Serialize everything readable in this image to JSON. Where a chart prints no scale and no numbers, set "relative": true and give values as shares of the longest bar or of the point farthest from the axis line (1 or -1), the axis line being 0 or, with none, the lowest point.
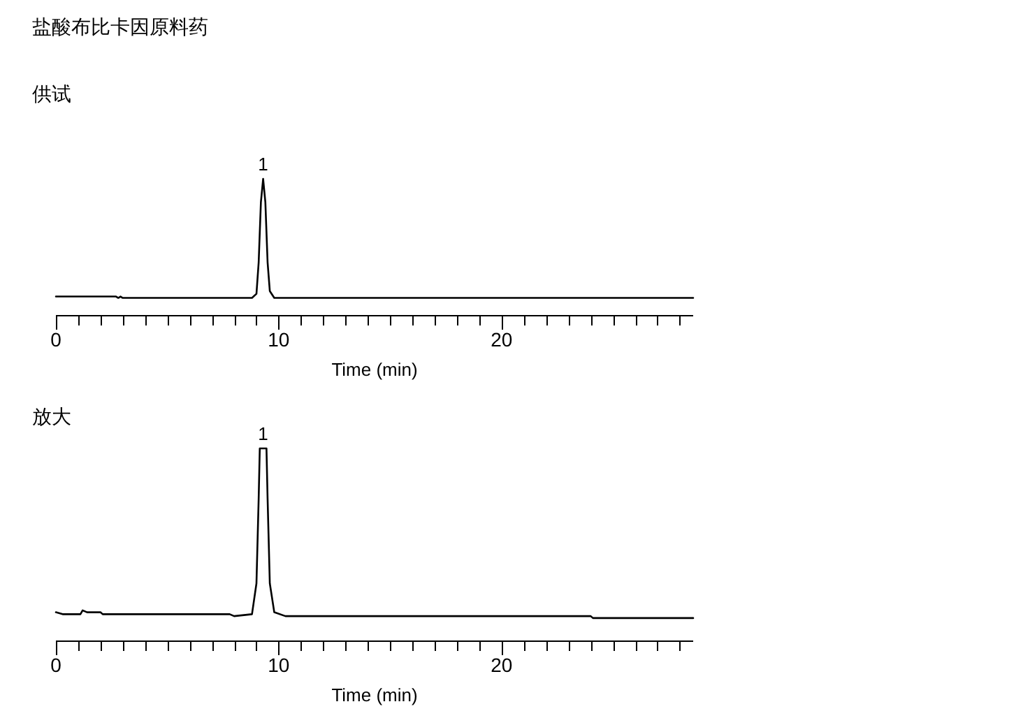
{
  "chart_data": [
    {
      "type": "line",
      "title": "盐酸布比卡因原料药",
      "subtitle": "供试",
      "xlabel": "Time (min)",
      "relative": true,
      "xlim": [
        0,
        28.6
      ],
      "xticks": [
        0,
        {
          "value": 1,
          "label": null
        },
        {
          "value": 2,
          "label": null
        },
        {
          "value": 3,
          "label": null
        },
        {
          "value": 4,
          "label": null
        },
        {
          "value": 5,
          "label": null
        },
        {
          "value": 6,
          "label": null
        },
        {
          "value": 7,
          "label": null
        },
        {
          "value": 8,
          "label": null
        },
        {
          "value": 9,
          "label": null
        },
        10,
        {
          "value": 11,
          "label": null
        },
        {
          "value": 12,
          "label": null
        },
        {
          "value": 13,
          "label": null
        },
        {
          "value": 14,
          "label": null
        },
        {
          "value": 15,
          "label": null
        },
        {
          "value": 16,
          "label": null
        },
        {
          "value": 17,
          "label": null
        },
        {
          "value": 18,
          "label": null
        },
        {
          "value": 19,
          "label": null
        },
        20,
        {
          "value": 21,
          "label": null
        },
        {
          "value": 22,
          "label": null
        },
        {
          "value": 23,
          "label": null
        },
        {
          "value": 24,
          "label": null
        },
        {
          "value": 25,
          "label": null
        },
        {
          "value": 26,
          "label": null
        },
        {
          "value": 27,
          "label": null
        },
        {
          "value": 28,
          "label": null
        }
      ],
      "tick_labels": "x",
      "series": [
        {
          "color": "#000000",
          "x": [
            0,
            2.7,
            2.8,
            2.9,
            3.0,
            8.8,
            9.0,
            9.1,
            9.2,
            9.3,
            9.4,
            9.5,
            9.6,
            9.8,
            15,
            28.6
          ],
          "values": [
            0.14,
            0.14,
            0.13,
            0.14,
            0.13,
            0.13,
            0.16,
            0.39,
            0.83,
            1,
            0.83,
            0.39,
            0.18,
            0.13,
            0.13,
            0.13
          ]
        }
      ],
      "annotations": [
        {
          "text": "1",
          "x": 9.3,
          "y": 1
        }
      ]
    },
    {
      "type": "line",
      "title": "放大",
      "xlabel": "Time (min)",
      "relative": true,
      "xlim": [
        0,
        28.6
      ],
      "xticks": [
        0,
        {
          "value": 1,
          "label": null
        },
        {
          "value": 2,
          "label": null
        },
        {
          "value": 3,
          "label": null
        },
        {
          "value": 4,
          "label": null
        },
        {
          "value": 5,
          "label": null
        },
        {
          "value": 6,
          "label": null
        },
        {
          "value": 7,
          "label": null
        },
        {
          "value": 8,
          "label": null
        },
        {
          "value": 9,
          "label": null
        },
        10,
        {
          "value": 11,
          "label": null
        },
        {
          "value": 12,
          "label": null
        },
        {
          "value": 13,
          "label": null
        },
        {
          "value": 14,
          "label": null
        },
        {
          "value": 15,
          "label": null
        },
        {
          "value": 16,
          "label": null
        },
        {
          "value": 17,
          "label": null
        },
        {
          "value": 18,
          "label": null
        },
        {
          "value": 19,
          "label": null
        },
        20,
        {
          "value": 21,
          "label": null
        },
        {
          "value": 22,
          "label": null
        },
        {
          "value": 23,
          "label": null
        },
        {
          "value": 24,
          "label": null
        },
        {
          "value": 25,
          "label": null
        },
        {
          "value": 26,
          "label": null
        },
        {
          "value": 27,
          "label": null
        },
        {
          "value": 28,
          "label": null
        }
      ],
      "tick_labels": "x",
      "series": [
        {
          "color": "#000000",
          "x": [
            0,
            0.3,
            1.1,
            1.2,
            1.4,
            2.0,
            2.1,
            7.8,
            8.0,
            8.8,
            9.0,
            9.1,
            9.15,
            9.45,
            9.5,
            9.6,
            9.8,
            10.3,
            24.0,
            24.1,
            28.6
          ],
          "values": [
            0.15,
            0.14,
            0.14,
            0.16,
            0.15,
            0.15,
            0.14,
            0.14,
            0.13,
            0.14,
            0.3,
            0.74,
            1,
            1,
            0.74,
            0.3,
            0.15,
            0.13,
            0.13,
            0.12,
            0.12
          ]
        }
      ],
      "annotations": [
        {
          "text": "1",
          "x": 9.3,
          "y": 1
        }
      ]
    }
  ]
}
